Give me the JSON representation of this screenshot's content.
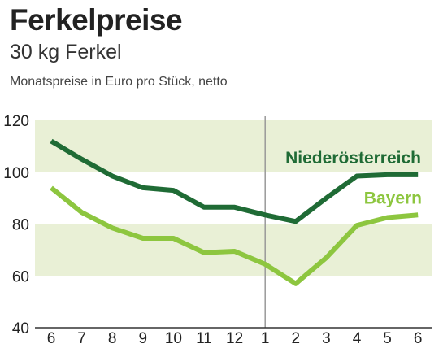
{
  "header": {
    "title": "Ferkelpreise",
    "subtitle": "30 kg Ferkel",
    "note": "Monatspreise in Euro pro Stück, netto"
  },
  "chart_data": {
    "type": "line",
    "title": "Ferkelpreise",
    "subtitle": "30 kg Ferkel",
    "ylabel": "Monatspreise in Euro pro Stück, netto",
    "xlabel": "",
    "categories": [
      "6",
      "7",
      "8",
      "9",
      "10",
      "11",
      "12",
      "1",
      "2",
      "3",
      "4",
      "5",
      "6"
    ],
    "ylim": [
      40,
      120
    ],
    "yticks": [
      40,
      60,
      80,
      100,
      120
    ],
    "bands": [
      [
        60,
        80
      ],
      [
        100,
        120
      ]
    ],
    "divider_after": "12",
    "series": [
      {
        "name": "Niederösterreich",
        "color": "#1f6b35",
        "values": [
          112,
          105,
          98.5,
          94,
          93,
          86.5,
          86.5,
          83.5,
          81,
          90,
          98.5,
          99,
          99
        ]
      },
      {
        "name": "Bayern",
        "color": "#8dc63f",
        "values": [
          94,
          84.5,
          78.5,
          74.5,
          74.5,
          69,
          69.5,
          64.5,
          57,
          67,
          79.5,
          82.5,
          83.5
        ]
      }
    ]
  },
  "colors": {
    "band": "#e9f0d6",
    "axis": "#333333",
    "divider": "#999999"
  }
}
